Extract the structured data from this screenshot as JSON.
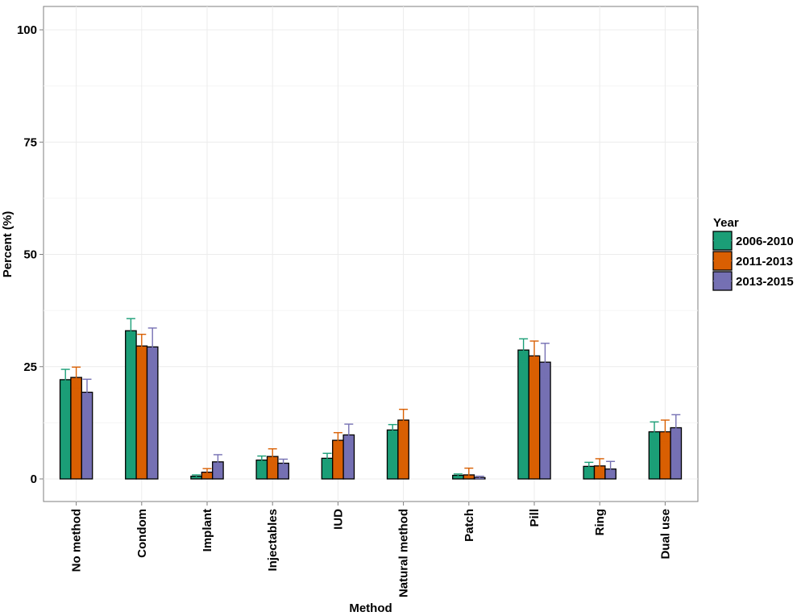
{
  "chart_data": {
    "type": "bar",
    "title": "",
    "xlabel": "Method",
    "ylabel": "Percent (%)",
    "ylim": [
      -5,
      105
    ],
    "yticks": [
      0,
      25,
      50,
      75,
      100
    ],
    "grid": true,
    "legend": {
      "title": "Year",
      "position": "right"
    },
    "error_bars": true,
    "categories": [
      "No method",
      "Condom",
      "Implant",
      "Injectables",
      "IUD",
      "Natural method",
      "Patch",
      "Pill",
      "Ring",
      "Dual use"
    ],
    "series": [
      {
        "name": "2006-2010",
        "color": "#1b9e77",
        "values": [
          22.1,
          33.0,
          0.6,
          4.2,
          4.6,
          10.9,
          0.8,
          28.7,
          2.8,
          10.5
        ],
        "err_low": [
          20.3,
          30.6,
          0.3,
          3.3,
          3.5,
          9.7,
          0.5,
          26.1,
          1.9,
          8.7
        ],
        "err_high": [
          24.4,
          35.7,
          0.9,
          5.1,
          5.7,
          12.1,
          1.1,
          31.2,
          3.7,
          12.7
        ]
      },
      {
        "name": "2011-2013",
        "color": "#d95f02",
        "values": [
          22.6,
          29.6,
          1.5,
          5.0,
          8.6,
          13.1,
          0.9,
          27.4,
          2.9,
          10.5
        ],
        "err_low": [
          20.3,
          26.9,
          1.0,
          3.6,
          6.9,
          10.9,
          0.4,
          24.2,
          1.7,
          8.2
        ],
        "err_high": [
          24.9,
          32.2,
          2.3,
          6.7,
          10.3,
          15.5,
          2.4,
          30.7,
          4.5,
          13.1
        ]
      },
      {
        "name": "2013-2015",
        "color": "#7570b3",
        "values": [
          19.3,
          29.4,
          3.8,
          3.5,
          9.8,
          null,
          0.3,
          26.0,
          2.2,
          11.4
        ],
        "err_low": [
          16.8,
          25.7,
          2.6,
          2.6,
          7.7,
          null,
          0.1,
          22.3,
          1.1,
          8.9
        ],
        "err_high": [
          22.2,
          33.6,
          5.4,
          4.4,
          12.2,
          null,
          0.6,
          30.2,
          3.9,
          14.3
        ]
      }
    ]
  }
}
